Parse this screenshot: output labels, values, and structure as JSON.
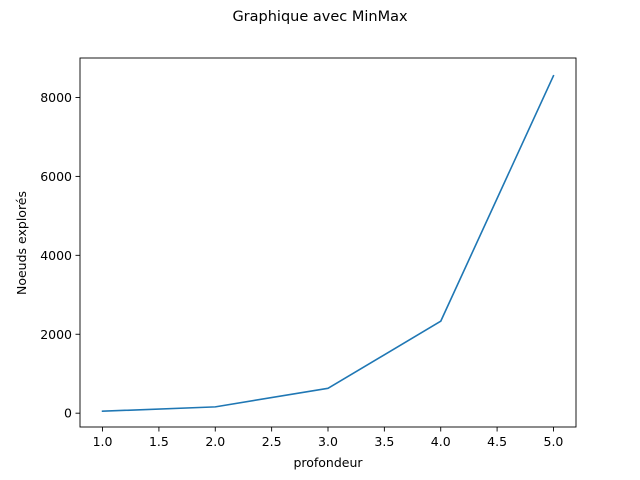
{
  "chart_data": {
    "type": "line",
    "title": "Graphique avec MinMax",
    "xlabel": "profondeur",
    "ylabel": "Noeuds explorés",
    "xlim": [
      0.8,
      5.2
    ],
    "ylim": [
      -350,
      9000
    ],
    "x_ticks": [
      1.0,
      1.5,
      2.0,
      2.5,
      3.0,
      3.5,
      4.0,
      4.5,
      5.0
    ],
    "x_tick_labels": [
      "1.0",
      "1.5",
      "2.0",
      "2.5",
      "3.0",
      "3.5",
      "4.0",
      "4.5",
      "5.0"
    ],
    "y_ticks": [
      0,
      2000,
      4000,
      6000,
      8000
    ],
    "y_tick_labels": [
      "0",
      "2000",
      "4000",
      "6000",
      "8000"
    ],
    "grid": false,
    "series": [
      {
        "x": [
          1,
          2,
          3,
          4,
          5
        ],
        "values": [
          50,
          160,
          630,
          2330,
          8550
        ],
        "color": "#1f77b4"
      }
    ]
  }
}
